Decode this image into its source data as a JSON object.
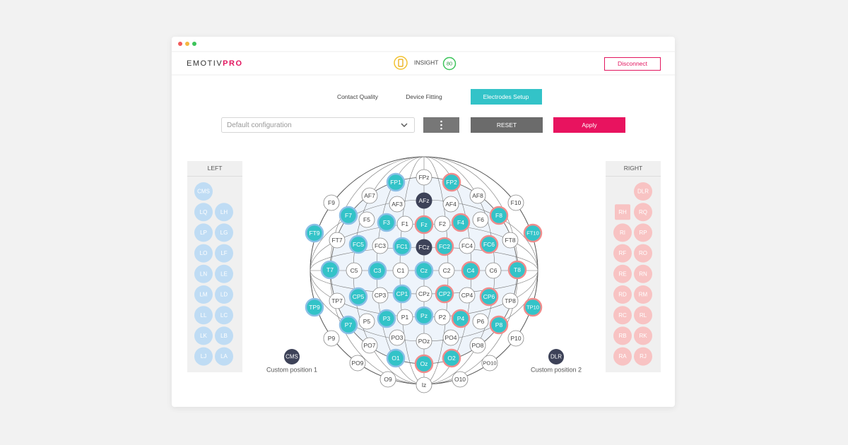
{
  "header": {
    "logo": {
      "main": "EMOTIV",
      "accent": "PRO"
    },
    "device": "INSIGHT",
    "badge": "80",
    "button": "Disconnect"
  },
  "tabs": {
    "items": [
      "Contact Quality",
      "Device Fitting",
      "Electrodes Setup"
    ],
    "active": 2
  },
  "toolbar": {
    "select": "Default configuration",
    "reset": "RESET",
    "apply": "Apply"
  },
  "left_panel": {
    "title": "LEFT",
    "rows": [
      [
        {
          "label": "CMS"
        }
      ],
      [
        {
          "label": "LQ"
        },
        {
          "label": "LH"
        }
      ],
      [
        {
          "label": "LP"
        },
        {
          "label": "LG"
        }
      ],
      [
        {
          "label": "LO"
        },
        {
          "label": "LF"
        }
      ],
      [
        {
          "label": "LN"
        },
        {
          "label": "LE"
        }
      ],
      [
        {
          "label": "LM"
        },
        {
          "label": "LD"
        }
      ],
      [
        {
          "label": "LL"
        },
        {
          "label": "LC"
        }
      ],
      [
        {
          "label": "LK"
        },
        {
          "label": "LB"
        }
      ],
      [
        {
          "label": "LJ"
        },
        {
          "label": "LA"
        }
      ]
    ]
  },
  "right_panel": {
    "title": "RIGHT",
    "rows": [
      [
        {
          "label": "DLR"
        }
      ],
      [
        {
          "label": "RH",
          "shape": "square"
        },
        {
          "label": "RQ"
        }
      ],
      [
        {
          "label": "RI"
        },
        {
          "label": "RP"
        }
      ],
      [
        {
          "label": "RF"
        },
        {
          "label": "RO"
        }
      ],
      [
        {
          "label": "RE"
        },
        {
          "label": "RN"
        }
      ],
      [
        {
          "label": "RD"
        },
        {
          "label": "RM"
        }
      ],
      [
        {
          "label": "RC"
        },
        {
          "label": "RL"
        }
      ],
      [
        {
          "label": "RB"
        },
        {
          "label": "RK"
        }
      ],
      [
        {
          "label": "RA"
        },
        {
          "label": "RJ"
        }
      ]
    ]
  },
  "custom_positions": [
    {
      "label": "CMS",
      "caption": "Custom position 1"
    },
    {
      "label": "DLR",
      "caption": "Custom position 2"
    }
  ],
  "head_map": {
    "electrodes": [
      {
        "label": "FPz",
        "state": "none"
      },
      {
        "label": "FP1",
        "state": "left"
      },
      {
        "label": "FP2",
        "state": "right"
      },
      {
        "label": "AF7",
        "state": "none"
      },
      {
        "label": "AFz",
        "state": "dark"
      },
      {
        "label": "AF3",
        "state": "none"
      },
      {
        "label": "AF4",
        "state": "none"
      },
      {
        "label": "AF8",
        "state": "none"
      },
      {
        "label": "F9",
        "state": "none"
      },
      {
        "label": "F10",
        "state": "none"
      },
      {
        "label": "F7",
        "state": "left"
      },
      {
        "label": "F8",
        "state": "right"
      },
      {
        "label": "F5",
        "state": "none"
      },
      {
        "label": "F3",
        "state": "left"
      },
      {
        "label": "F1",
        "state": "none"
      },
      {
        "label": "Fz",
        "state": "right"
      },
      {
        "label": "F2",
        "state": "none"
      },
      {
        "label": "F4",
        "state": "right"
      },
      {
        "label": "F6",
        "state": "none"
      },
      {
        "label": "FT9",
        "state": "left"
      },
      {
        "label": "FT10",
        "state": "right"
      },
      {
        "label": "FT7",
        "state": "none"
      },
      {
        "label": "FT8",
        "state": "none"
      },
      {
        "label": "FC5",
        "state": "left"
      },
      {
        "label": "FC3",
        "state": "none"
      },
      {
        "label": "FC1",
        "state": "left"
      },
      {
        "label": "FCz",
        "state": "dark"
      },
      {
        "label": "FC2",
        "state": "right"
      },
      {
        "label": "FC4",
        "state": "none"
      },
      {
        "label": "FC6",
        "state": "right"
      },
      {
        "label": "T7",
        "state": "left"
      },
      {
        "label": "C5",
        "state": "none"
      },
      {
        "label": "C3",
        "state": "left"
      },
      {
        "label": "C1",
        "state": "none"
      },
      {
        "label": "Cz",
        "state": "left"
      },
      {
        "label": "C2",
        "state": "none"
      },
      {
        "label": "C4",
        "state": "right"
      },
      {
        "label": "C6",
        "state": "none"
      },
      {
        "label": "T8",
        "state": "right"
      },
      {
        "label": "TP7",
        "state": "none"
      },
      {
        "label": "CP5",
        "state": "left"
      },
      {
        "label": "CP3",
        "state": "none"
      },
      {
        "label": "CP1",
        "state": "left"
      },
      {
        "label": "CPz",
        "state": "none"
      },
      {
        "label": "CP2",
        "state": "right"
      },
      {
        "label": "CP4",
        "state": "none"
      },
      {
        "label": "CP6",
        "state": "right"
      },
      {
        "label": "TP8",
        "state": "none"
      },
      {
        "label": "TP9",
        "state": "left"
      },
      {
        "label": "TP10",
        "state": "right"
      },
      {
        "label": "P7",
        "state": "left"
      },
      {
        "label": "P5",
        "state": "none"
      },
      {
        "label": "P3",
        "state": "left"
      },
      {
        "label": "P1",
        "state": "none"
      },
      {
        "label": "Pz",
        "state": "left"
      },
      {
        "label": "P2",
        "state": "none"
      },
      {
        "label": "P4",
        "state": "right"
      },
      {
        "label": "P6",
        "state": "none"
      },
      {
        "label": "P8",
        "state": "right"
      },
      {
        "label": "P9",
        "state": "none"
      },
      {
        "label": "P10",
        "state": "none"
      },
      {
        "label": "PO7",
        "state": "none"
      },
      {
        "label": "PO3",
        "state": "none"
      },
      {
        "label": "POz",
        "state": "none"
      },
      {
        "label": "PO4",
        "state": "none"
      },
      {
        "label": "PO8",
        "state": "none"
      },
      {
        "label": "PO9",
        "state": "none"
      },
      {
        "label": "O1",
        "state": "left"
      },
      {
        "label": "Oz",
        "state": "right"
      },
      {
        "label": "O2",
        "state": "right"
      },
      {
        "label": "PO10",
        "state": "none"
      },
      {
        "label": "O9",
        "state": "none"
      },
      {
        "label": "Iz",
        "state": "none"
      },
      {
        "label": "O10",
        "state": "none"
      }
    ]
  }
}
